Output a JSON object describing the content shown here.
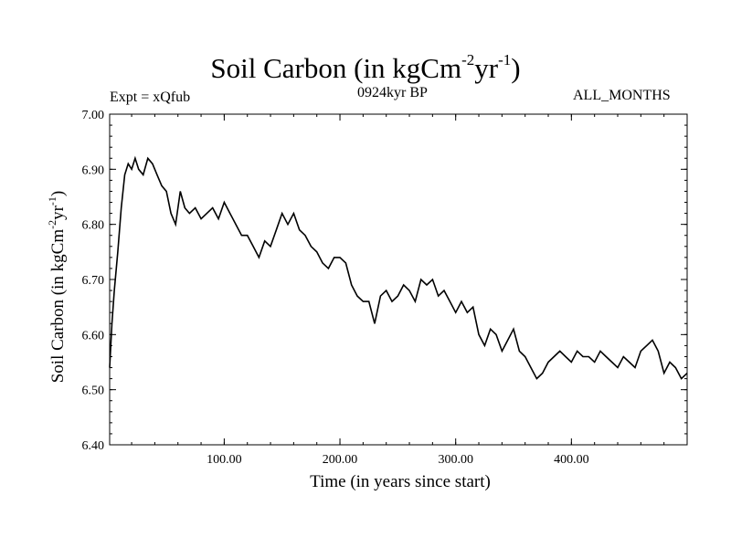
{
  "header": {
    "title_main": "Soil Carbon (in kgCm",
    "title_sup1": "-2",
    "title_mid": "yr",
    "title_sup2": "-1",
    "title_end": ")",
    "experiment": "Expt = xQfub",
    "period": "0924kyr BP",
    "months": "ALL_MONTHS"
  },
  "chart_data": {
    "type": "line",
    "title": "Soil Carbon (in kgCm-2yr-1)",
    "xlabel": "Time (in years since start)",
    "ylabel_main": "Soil Carbon (in kgCm",
    "ylabel_sup1": "-2",
    "ylabel_mid": "yr",
    "ylabel_sup2": "-1",
    "ylabel_end": ")",
    "xlim": [
      1,
      500
    ],
    "ylim": [
      6.4,
      7.0
    ],
    "x_ticks": [
      100,
      200,
      300,
      400
    ],
    "x_tick_labels": [
      "100.00",
      "200.00",
      "300.00",
      "400.00"
    ],
    "y_ticks": [
      6.4,
      6.5,
      6.6,
      6.7,
      6.8,
      6.9,
      7.0
    ],
    "y_tick_labels": [
      "6.40",
      "6.50",
      "6.60",
      "6.70",
      "6.80",
      "6.90",
      "7.00"
    ],
    "series": [
      {
        "name": "Soil Carbon",
        "x": [
          1,
          3,
          5,
          8,
          11,
          14,
          17,
          20,
          23,
          26,
          30,
          34,
          38,
          42,
          46,
          50,
          54,
          58,
          62,
          66,
          70,
          75,
          80,
          85,
          90,
          95,
          100,
          105,
          110,
          115,
          120,
          125,
          130,
          135,
          140,
          145,
          150,
          155,
          160,
          165,
          170,
          175,
          180,
          185,
          190,
          195,
          200,
          205,
          210,
          215,
          220,
          225,
          230,
          235,
          240,
          245,
          250,
          255,
          260,
          265,
          270,
          275,
          280,
          285,
          290,
          295,
          300,
          305,
          310,
          315,
          320,
          325,
          330,
          335,
          340,
          345,
          350,
          355,
          360,
          365,
          370,
          375,
          380,
          385,
          390,
          395,
          400,
          405,
          410,
          415,
          420,
          425,
          430,
          435,
          440,
          445,
          450,
          455,
          460,
          465,
          470,
          475,
          480,
          485,
          490,
          495,
          500
        ],
        "y": [
          6.54,
          6.62,
          6.68,
          6.75,
          6.83,
          6.89,
          6.91,
          6.9,
          6.92,
          6.9,
          6.89,
          6.92,
          6.91,
          6.89,
          6.87,
          6.86,
          6.82,
          6.8,
          6.86,
          6.83,
          6.82,
          6.83,
          6.81,
          6.82,
          6.83,
          6.81,
          6.84,
          6.82,
          6.8,
          6.78,
          6.78,
          6.76,
          6.74,
          6.77,
          6.76,
          6.79,
          6.82,
          6.8,
          6.82,
          6.79,
          6.78,
          6.76,
          6.75,
          6.73,
          6.72,
          6.74,
          6.74,
          6.73,
          6.69,
          6.67,
          6.66,
          6.66,
          6.62,
          6.67,
          6.68,
          6.66,
          6.67,
          6.69,
          6.68,
          6.66,
          6.7,
          6.69,
          6.7,
          6.67,
          6.68,
          6.66,
          6.64,
          6.66,
          6.64,
          6.65,
          6.6,
          6.58,
          6.61,
          6.6,
          6.57,
          6.59,
          6.61,
          6.57,
          6.56,
          6.54,
          6.52,
          6.53,
          6.55,
          6.56,
          6.57,
          6.56,
          6.55,
          6.57,
          6.56,
          6.56,
          6.55,
          6.57,
          6.56,
          6.55,
          6.54,
          6.56,
          6.55,
          6.54,
          6.57,
          6.58,
          6.59,
          6.57,
          6.53,
          6.55,
          6.54,
          6.52,
          6.53
        ]
      }
    ]
  }
}
